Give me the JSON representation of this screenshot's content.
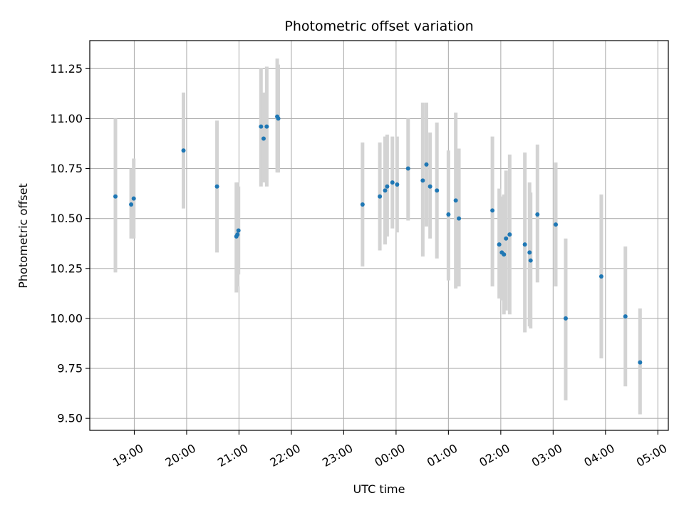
{
  "chart_data": {
    "type": "scatter",
    "title": "Photometric offset variation",
    "xlabel": "UTC time",
    "ylabel": "Photometric offset",
    "grid": true,
    "legend": "none",
    "colors": {
      "points": "#1f77b4",
      "errorbars": "#d3d3d3",
      "grid": "#b0b0b0"
    },
    "x_unit": "hours relative to 00:00 UTC",
    "xlim": [
      -5.85,
      5.2
    ],
    "ylim": [
      9.44,
      11.39
    ],
    "x_ticks": [
      {
        "value": -5,
        "label": "19:00"
      },
      {
        "value": -4,
        "label": "20:00"
      },
      {
        "value": -3,
        "label": "21:00"
      },
      {
        "value": -2,
        "label": "22:00"
      },
      {
        "value": -1,
        "label": "23:00"
      },
      {
        "value": 0,
        "label": "00:00"
      },
      {
        "value": 1,
        "label": "01:00"
      },
      {
        "value": 2,
        "label": "02:00"
      },
      {
        "value": 3,
        "label": "03:00"
      },
      {
        "value": 4,
        "label": "04:00"
      },
      {
        "value": 5,
        "label": "05:00"
      }
    ],
    "y_ticks": [
      {
        "value": 9.5,
        "label": "9.50"
      },
      {
        "value": 9.75,
        "label": "9.75"
      },
      {
        "value": 10.0,
        "label": "10.00"
      },
      {
        "value": 10.25,
        "label": "10.25"
      },
      {
        "value": 10.5,
        "label": "10.50"
      },
      {
        "value": 10.75,
        "label": "10.75"
      },
      {
        "value": 11.0,
        "label": "11.00"
      },
      {
        "value": 11.25,
        "label": "11.25"
      }
    ],
    "points": [
      {
        "x": -5.36,
        "y": 10.61,
        "lo": 10.23,
        "hi": 11.0
      },
      {
        "x": -5.06,
        "y": 10.57,
        "lo": 10.4,
        "hi": 10.75
      },
      {
        "x": -5.01,
        "y": 10.6,
        "lo": 10.4,
        "hi": 10.8
      },
      {
        "x": -4.06,
        "y": 10.84,
        "lo": 10.55,
        "hi": 11.13
      },
      {
        "x": -3.42,
        "y": 10.66,
        "lo": 10.33,
        "hi": 10.99
      },
      {
        "x": -3.05,
        "y": 10.41,
        "lo": 10.13,
        "hi": 10.68
      },
      {
        "x": -3.03,
        "y": 10.42,
        "lo": 10.16,
        "hi": 10.68
      },
      {
        "x": -3.01,
        "y": 10.44,
        "lo": 10.22,
        "hi": 10.66
      },
      {
        "x": -2.58,
        "y": 10.96,
        "lo": 10.66,
        "hi": 11.25
      },
      {
        "x": -2.53,
        "y": 10.9,
        "lo": 10.68,
        "hi": 11.13
      },
      {
        "x": -2.47,
        "y": 10.96,
        "lo": 10.66,
        "hi": 11.26
      },
      {
        "x": -2.27,
        "y": 11.01,
        "lo": 10.73,
        "hi": 11.3
      },
      {
        "x": -2.25,
        "y": 11.0,
        "lo": 10.73,
        "hi": 11.27
      },
      {
        "x": -0.64,
        "y": 10.57,
        "lo": 10.26,
        "hi": 10.88
      },
      {
        "x": -0.31,
        "y": 10.61,
        "lo": 10.34,
        "hi": 10.88
      },
      {
        "x": -0.21,
        "y": 10.64,
        "lo": 10.37,
        "hi": 10.91
      },
      {
        "x": -0.17,
        "y": 10.66,
        "lo": 10.41,
        "hi": 10.92
      },
      {
        "x": -0.07,
        "y": 10.68,
        "lo": 10.45,
        "hi": 10.91
      },
      {
        "x": 0.02,
        "y": 10.67,
        "lo": 10.43,
        "hi": 10.91
      },
      {
        "x": 0.23,
        "y": 10.75,
        "lo": 10.49,
        "hi": 11.0
      },
      {
        "x": 0.51,
        "y": 10.69,
        "lo": 10.31,
        "hi": 11.08
      },
      {
        "x": 0.58,
        "y": 10.77,
        "lo": 10.46,
        "hi": 11.08
      },
      {
        "x": 0.65,
        "y": 10.66,
        "lo": 10.4,
        "hi": 10.93
      },
      {
        "x": 0.78,
        "y": 10.64,
        "lo": 10.3,
        "hi": 10.98
      },
      {
        "x": 1.0,
        "y": 10.52,
        "lo": 10.19,
        "hi": 10.84
      },
      {
        "x": 1.14,
        "y": 10.59,
        "lo": 10.15,
        "hi": 11.03
      },
      {
        "x": 1.2,
        "y": 10.5,
        "lo": 10.16,
        "hi": 10.85
      },
      {
        "x": 1.84,
        "y": 10.54,
        "lo": 10.16,
        "hi": 10.91
      },
      {
        "x": 1.97,
        "y": 10.37,
        "lo": 10.1,
        "hi": 10.65
      },
      {
        "x": 2.02,
        "y": 10.33,
        "lo": 10.09,
        "hi": 10.61
      },
      {
        "x": 2.06,
        "y": 10.32,
        "lo": 10.02,
        "hi": 10.62
      },
      {
        "x": 2.1,
        "y": 10.4,
        "lo": 10.04,
        "hi": 10.74
      },
      {
        "x": 2.17,
        "y": 10.42,
        "lo": 10.02,
        "hi": 10.82
      },
      {
        "x": 2.46,
        "y": 10.37,
        "lo": 9.93,
        "hi": 10.83
      },
      {
        "x": 2.55,
        "y": 10.33,
        "lo": 9.96,
        "hi": 10.68
      },
      {
        "x": 2.57,
        "y": 10.29,
        "lo": 9.95,
        "hi": 10.63
      },
      {
        "x": 2.7,
        "y": 10.52,
        "lo": 10.18,
        "hi": 10.87
      },
      {
        "x": 3.05,
        "y": 10.47,
        "lo": 10.16,
        "hi": 10.78
      },
      {
        "x": 3.24,
        "y": 10.0,
        "lo": 9.59,
        "hi": 10.4
      },
      {
        "x": 3.92,
        "y": 10.21,
        "lo": 9.8,
        "hi": 10.62
      },
      {
        "x": 4.38,
        "y": 10.01,
        "lo": 9.66,
        "hi": 10.36
      },
      {
        "x": 4.66,
        "y": 9.78,
        "lo": 9.52,
        "hi": 10.05
      }
    ]
  }
}
